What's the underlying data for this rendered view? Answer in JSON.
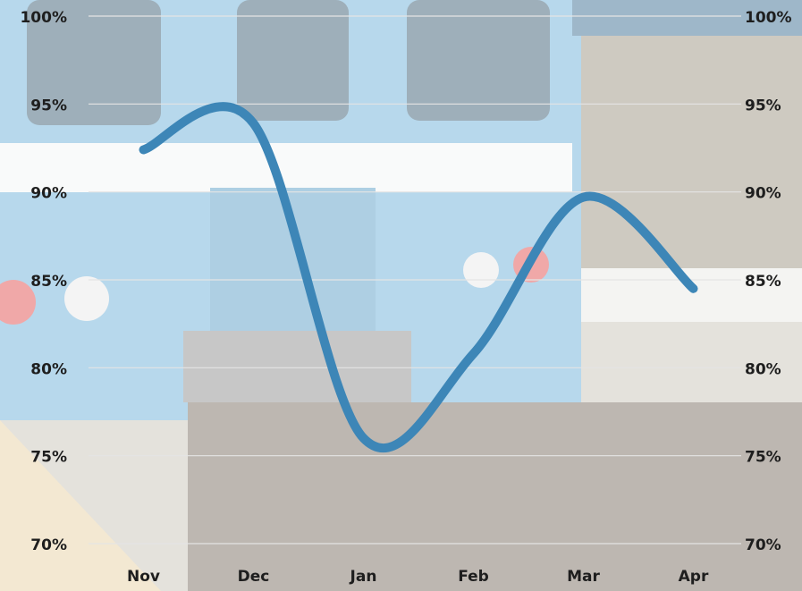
{
  "chart_data": {
    "type": "line",
    "categories": [
      "Nov",
      "Dec",
      "Jan",
      "Feb",
      "Mar",
      "Apr"
    ],
    "series": [
      {
        "color": "#3d86b7",
        "values": [
          92.4,
          93.9,
          76.0,
          80.8,
          89.7,
          84.5
        ]
      }
    ],
    "smooth": true,
    "ylim": [
      70,
      100
    ],
    "yticks": [
      {
        "value": 70,
        "label": "70%"
      },
      {
        "value": 75,
        "label": "75%"
      },
      {
        "value": 80,
        "label": "80%"
      },
      {
        "value": 85,
        "label": "85%"
      },
      {
        "value": 90,
        "label": "90%"
      },
      {
        "value": 95,
        "label": "95%"
      },
      {
        "value": 100,
        "label": "100%"
      }
    ],
    "y2lim": [
      70,
      100
    ],
    "y2ticks": [
      {
        "value": 70,
        "label": "70%"
      },
      {
        "value": 75,
        "label": "75%"
      },
      {
        "value": 80,
        "label": "80%"
      },
      {
        "value": 85,
        "label": "85%"
      },
      {
        "value": 90,
        "label": "90%"
      },
      {
        "value": 95,
        "label": "95%"
      },
      {
        "value": 100,
        "label": "100%"
      }
    ],
    "grid": true
  }
}
